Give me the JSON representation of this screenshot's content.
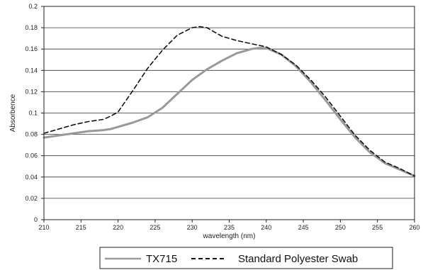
{
  "chart_data": {
    "type": "line",
    "title": "",
    "xlabel": "wavelength (nm)",
    "ylabel": "Absorbence",
    "xlim": [
      210,
      260
    ],
    "ylim": [
      0,
      0.2
    ],
    "xticks": [
      210,
      215,
      220,
      225,
      230,
      235,
      240,
      245,
      250,
      255,
      260
    ],
    "yticks": [
      0,
      0.02,
      0.04,
      0.06,
      0.08,
      0.1,
      0.12,
      0.14,
      0.16,
      0.18,
      0.2
    ],
    "ytick_labels": [
      "0",
      "0.02",
      "0.04",
      "0.06",
      "0.08",
      "0.1",
      "0.12",
      "0.14",
      "0.16",
      "0.18",
      "0.2"
    ],
    "grid": "horizontal",
    "legend": "bottom",
    "series": [
      {
        "name": "TX715",
        "color": "#999999",
        "style": "solid",
        "x": [
          210,
          212,
          214,
          216,
          218,
          219,
          220,
          222,
          224,
          226,
          228,
          230,
          232,
          234,
          236,
          238,
          239,
          240,
          242,
          244,
          246,
          248,
          250,
          252,
          254,
          256,
          258,
          260
        ],
        "y": [
          0.077,
          0.079,
          0.081,
          0.083,
          0.084,
          0.085,
          0.087,
          0.091,
          0.096,
          0.105,
          0.118,
          0.131,
          0.141,
          0.149,
          0.156,
          0.16,
          0.161,
          0.161,
          0.155,
          0.144,
          0.129,
          0.112,
          0.094,
          0.077,
          0.063,
          0.053,
          0.047,
          0.041
        ]
      },
      {
        "name": "Standard Polyester Swab",
        "color": "#111111",
        "style": "dashed",
        "x": [
          210,
          212,
          214,
          216,
          218,
          219,
          220,
          222,
          224,
          226,
          228,
          230,
          231,
          232,
          234,
          236,
          238,
          240,
          242,
          244,
          246,
          248,
          250,
          252,
          254,
          256,
          258,
          260
        ],
        "y": [
          0.081,
          0.085,
          0.089,
          0.092,
          0.094,
          0.097,
          0.101,
          0.121,
          0.142,
          0.159,
          0.173,
          0.18,
          0.181,
          0.18,
          0.172,
          0.168,
          0.165,
          0.162,
          0.155,
          0.145,
          0.131,
          0.115,
          0.097,
          0.079,
          0.065,
          0.054,
          0.048,
          0.041
        ]
      }
    ]
  }
}
